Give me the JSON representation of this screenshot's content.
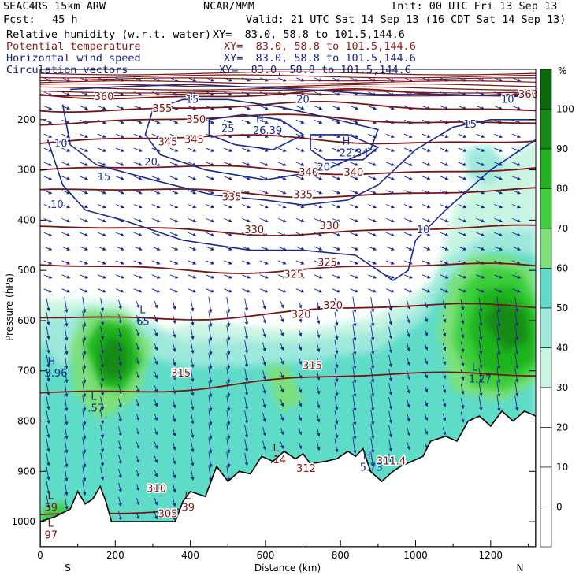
{
  "header": {
    "model": "SEAC4RS 15km ARW",
    "center": "NCAR/MMM",
    "init": "Init: 00 UTC Fri 13 Sep 13",
    "fcst_label": "Fcst:",
    "fcst_value": "45 h",
    "valid": "Valid: 21 UTC Sat 14 Sep 13 (16 CDT Sat 14 Sep 13)"
  },
  "fields": [
    {
      "name": "Relative humidity (w.r.t. water)",
      "xy": "XY=  83.0, 58.8 to 101.5,144.6",
      "color": "#000000"
    },
    {
      "name": "Potential temperature",
      "xy": "XY=  83.0, 58.8 to 101.5,144.6",
      "color": "#8b1a1a"
    },
    {
      "name": "Horizontal wind speed",
      "xy": "XY=  83.0, 58.8 to 101.5,144.6",
      "color": "#1a237e"
    },
    {
      "name": "Circulation vectors",
      "xy": "XY=  83.0, 58.8 to 101.5,144.6",
      "color": "#1a237e"
    }
  ],
  "colors": {
    "theta": "#7a1414",
    "wind": "#1c2a8c",
    "terrain": "#000000",
    "rh_scale": [
      "#ffffff",
      "#ffffff",
      "#ffffff",
      "#ffffff",
      "#c8f4e2",
      "#9ee9dc",
      "#5fdcc8",
      "#7de07a",
      "#3ecf3e",
      "#1fb41f",
      "#158a15",
      "#0a6a0a"
    ]
  },
  "chart_data": {
    "type": "heatmap",
    "xlabel": "Distance (km)",
    "ylabel": "Pressure (hPa)",
    "xlim": [
      0,
      1320
    ],
    "ylim": [
      1050,
      100
    ],
    "x_ticks": [
      "0",
      "200",
      "400",
      "600",
      "800",
      "1000",
      "1200"
    ],
    "y_ticks": [
      "200",
      "300",
      "400",
      "500",
      "600",
      "700",
      "800",
      "900",
      "1000"
    ],
    "x_end_labels": {
      "left": "S",
      "right": "N"
    },
    "colorbar": {
      "unit": "%",
      "levels": [
        "100",
        "90",
        "80",
        "70",
        "60",
        "50",
        "40",
        "30",
        "20",
        "10",
        "0"
      ]
    },
    "theta_contours": [
      {
        "label": "360",
        "p": 150
      },
      {
        "label": "355",
        "p": 175
      },
      {
        "label": "350",
        "p": 200
      },
      {
        "label": "345",
        "p": 240
      },
      {
        "label": "340",
        "p": 300
      },
      {
        "label": "335",
        "p": 345
      },
      {
        "label": "330",
        "p": 420
      },
      {
        "label": "325",
        "p": 495
      },
      {
        "label": "320",
        "p": 570
      },
      {
        "label": "315",
        "p": 700
      },
      {
        "label": "310",
        "p": 940
      },
      {
        "label": "305",
        "p": 990
      }
    ],
    "theta_labels": [
      {
        "text": "360",
        "x": 170,
        "p": 155
      },
      {
        "text": "355",
        "x": 325,
        "p": 178
      },
      {
        "text": "350",
        "x": 415,
        "p": 200
      },
      {
        "text": "345",
        "x": 410,
        "p": 240
      },
      {
        "text": "340",
        "x": 715,
        "p": 305
      },
      {
        "text": "340",
        "x": 835,
        "p": 305
      },
      {
        "text": "335",
        "x": 510,
        "p": 355
      },
      {
        "text": "335",
        "x": 700,
        "p": 350
      },
      {
        "text": "330",
        "x": 570,
        "p": 420
      },
      {
        "text": "330",
        "x": 770,
        "p": 412
      },
      {
        "text": "325",
        "x": 675,
        "p": 508
      },
      {
        "text": "325",
        "x": 765,
        "p": 485
      },
      {
        "text": "320",
        "x": 695,
        "p": 588
      },
      {
        "text": "320",
        "x": 780,
        "p": 570
      },
      {
        "text": "315",
        "x": 375,
        "p": 705
      },
      {
        "text": "315",
        "x": 725,
        "p": 690
      },
      {
        "text": "310",
        "x": 310,
        "p": 935
      },
      {
        "text": "305",
        "x": 340,
        "p": 985
      },
      {
        "text": "312",
        "x": 708,
        "p": 895
      },
      {
        "text": "311.4",
        "x": 935,
        "p": 880
      },
      {
        "text": "360",
        "x": 1300,
        "p": 150
      },
      {
        "text": "345",
        "x": 340,
        "p": 245
      }
    ],
    "wind_labels": [
      {
        "text": "15",
        "x": 405,
        "p": 160
      },
      {
        "text": "20",
        "x": 700,
        "p": 160
      },
      {
        "text": "25",
        "x": 500,
        "p": 218
      },
      {
        "text": "20",
        "x": 295,
        "p": 285
      },
      {
        "text": "20",
        "x": 755,
        "p": 295
      },
      {
        "text": "15",
        "x": 170,
        "p": 315
      },
      {
        "text": "10",
        "x": 55,
        "p": 248
      },
      {
        "text": "10",
        "x": 45,
        "p": 370
      },
      {
        "text": "15",
        "x": 1145,
        "p": 210
      },
      {
        "text": "10",
        "x": 1245,
        "p": 160
      },
      {
        "text": "10",
        "x": 1020,
        "p": 420
      }
    ],
    "extrema": [
      {
        "text": "H",
        "x": 575,
        "p": 205,
        "value": "26.39"
      },
      {
        "text": "H",
        "x": 805,
        "p": 250,
        "value": "22.34"
      },
      {
        "text": "H",
        "x": 20,
        "p": 688,
        "value": "3.96"
      },
      {
        "text": "L",
        "x": 265,
        "p": 585,
        "value": "65"
      },
      {
        "text": "L",
        "x": 135,
        "p": 758,
        "value": ".57"
      },
      {
        "text": "L",
        "x": 620,
        "p": 860,
        "value": ".14"
      },
      {
        "text": "H",
        "x": 860,
        "p": 875,
        "value": "5.73"
      },
      {
        "text": "L",
        "x": 1150,
        "p": 700,
        "value": "1.27"
      },
      {
        "text": "L",
        "x": 20,
        "p": 955,
        "value": "59"
      },
      {
        "text": "L",
        "x": 385,
        "p": 955,
        "value": "39"
      },
      {
        "text": "L",
        "x": 20,
        "p": 1010,
        "value": "97"
      }
    ]
  }
}
